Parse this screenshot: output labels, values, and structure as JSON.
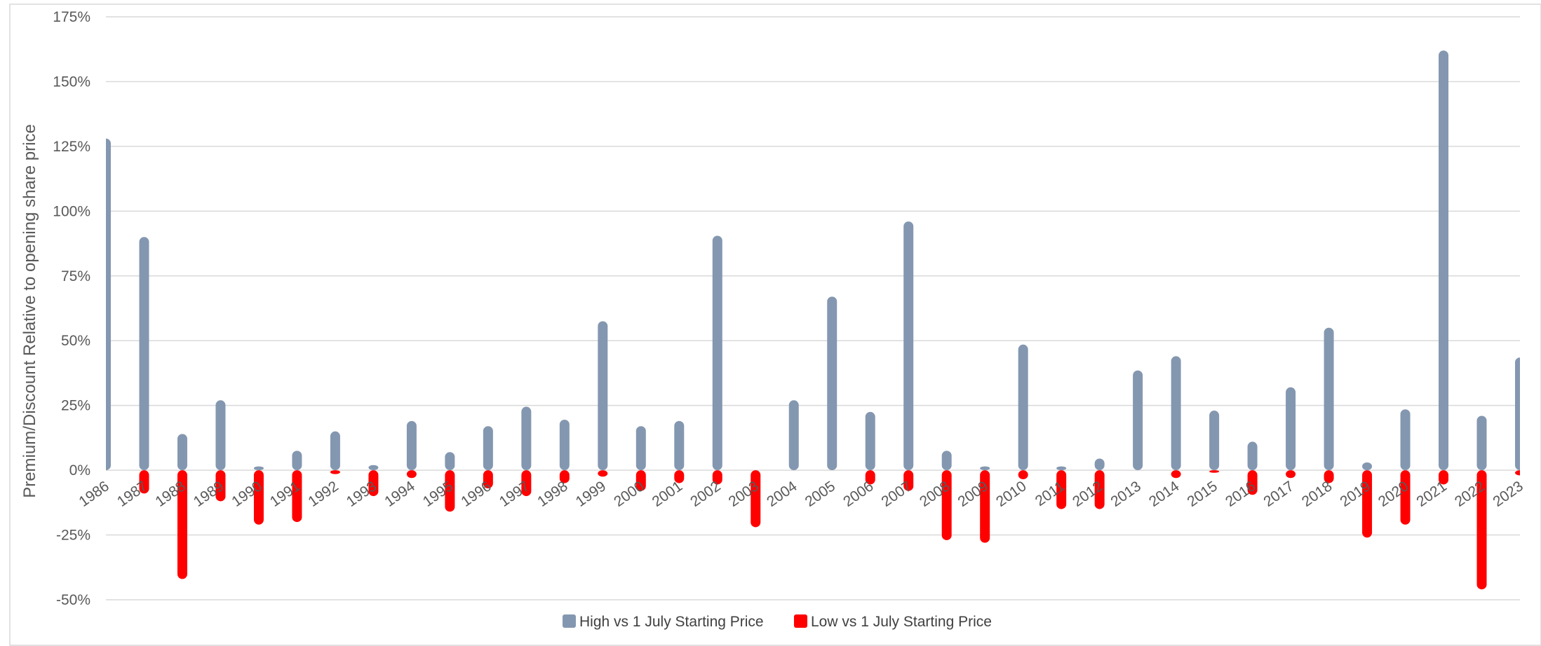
{
  "chart_data": {
    "type": "bar",
    "title": "",
    "xlabel": "",
    "ylabel": "Premium/Discount Relative to opening share price",
    "ylim": [
      -50,
      175
    ],
    "yticks": [
      -50,
      -25,
      0,
      25,
      50,
      75,
      100,
      125,
      150,
      175
    ],
    "ytick_labels": [
      "-50%",
      "-25%",
      "0%",
      "25%",
      "50%",
      "75%",
      "100%",
      "125%",
      "150%",
      "175%"
    ],
    "grid": true,
    "legend_position": "bottom",
    "categories": [
      "1986",
      "1987",
      "1988",
      "1989",
      "1990",
      "1991",
      "1992",
      "1993",
      "1994",
      "1995",
      "1996",
      "1997",
      "1998",
      "1999",
      "2000",
      "2001",
      "2002",
      "2003",
      "2004",
      "2005",
      "2006",
      "2007",
      "2008",
      "2009",
      "2010",
      "2011",
      "2012",
      "2013",
      "2014",
      "2015",
      "2016",
      "2017",
      "2018",
      "2019",
      "2020",
      "2021",
      "2022",
      "2023"
    ],
    "series": [
      {
        "name": "High vs 1 July Starting Price",
        "color": "#8497b0",
        "values": [
          128,
          90,
          14,
          27,
          1.5,
          7.5,
          15,
          2,
          19,
          7,
          17,
          24.5,
          19.5,
          57.5,
          17,
          19,
          90.5,
          0,
          27,
          67,
          22.5,
          96,
          7.5,
          1.5,
          48.5,
          1.5,
          4.5,
          38.5,
          44,
          23,
          11,
          32,
          55,
          3,
          23.5,
          162,
          21,
          43.5
        ]
      },
      {
        "name": "Low vs 1 July Starting Price",
        "color": "#ff0000",
        "values": [
          0,
          -9,
          -42,
          -12,
          -21,
          -20,
          -1.5,
          -10,
          -3,
          -16,
          -7,
          -10,
          -5,
          -2.5,
          -8,
          -5,
          -5.5,
          -22,
          0,
          0,
          -5.5,
          -8,
          -27,
          -28,
          -3.5,
          -15,
          -15,
          0,
          -3,
          -1,
          -9.5,
          -3,
          -5,
          -26,
          -21,
          -5.5,
          -46,
          -2
        ]
      }
    ]
  }
}
